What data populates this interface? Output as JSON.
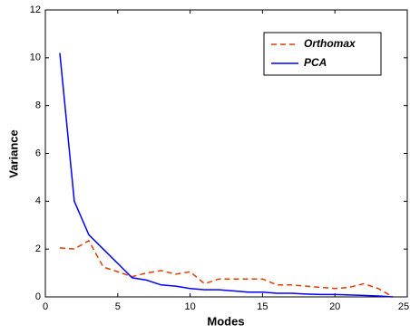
{
  "chart_data": {
    "type": "line",
    "xlabel": "Modes",
    "ylabel": "Variance",
    "x": [
      1,
      2,
      3,
      4,
      5,
      6,
      7,
      8,
      9,
      10,
      11,
      12,
      13,
      14,
      15,
      16,
      17,
      18,
      19,
      20,
      21,
      22,
      23,
      24
    ],
    "series": [
      {
        "name": "Orthomax",
        "color": "#e03c00",
        "dash": true,
        "values": [
          2.05,
          2.0,
          2.35,
          1.25,
          1.05,
          0.85,
          1.0,
          1.1,
          0.95,
          1.05,
          0.55,
          0.75,
          0.75,
          0.75,
          0.75,
          0.5,
          0.5,
          0.45,
          0.4,
          0.35,
          0.4,
          0.55,
          0.35,
          0.0
        ]
      },
      {
        "name": "PCA",
        "color": "#0000ff",
        "dash": false,
        "values": [
          10.2,
          4.0,
          2.6,
          2.0,
          1.4,
          0.8,
          0.7,
          0.5,
          0.45,
          0.35,
          0.3,
          0.3,
          0.25,
          0.2,
          0.2,
          0.15,
          0.15,
          0.12,
          0.1,
          0.1,
          0.08,
          0.06,
          0.04,
          0.0
        ]
      }
    ],
    "xlim": [
      0,
      25
    ],
    "xticks": [
      0,
      5,
      10,
      15,
      20,
      25
    ],
    "ylim": [
      0,
      12
    ],
    "yticks": [
      0,
      2,
      4,
      6,
      8,
      10,
      12
    ],
    "legend": "upper right"
  }
}
